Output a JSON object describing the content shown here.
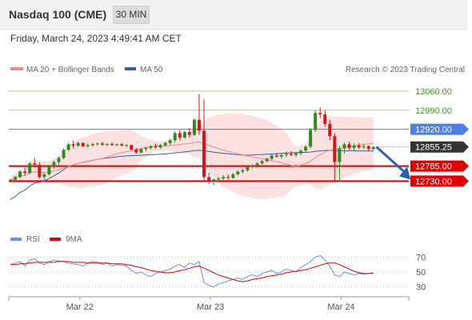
{
  "header": {
    "title": "Nasdaq 100 (CME)",
    "timeframe": "30 MIN",
    "datetime": "Friday, March 24, 2023 4:49:41 AM CET"
  },
  "copyright": "Research © 2023 Trading Central",
  "colors": {
    "green_level": "#a6d96a",
    "green_label": "#3a9a1a",
    "blue_level": "#4f7fe0",
    "red_level": "#e00000",
    "ma20": "#f08a8a",
    "bollinger_fill": "#fde0e0",
    "ma50": "#3b5f9c",
    "candle_up": "#2e8b1e",
    "candle_down": "#cc1a1a",
    "rsi": "#6a8fe8",
    "rsi_ma": "#e00000",
    "arrow": "#2a5fa8"
  },
  "chart_data": [
    {
      "type": "candlestick",
      "legend": [
        {
          "name": "MA 20 + Bollinger Bands",
          "color": "#f08a8a"
        },
        {
          "name": "MA 50",
          "color": "#3b5f9c"
        }
      ],
      "ylim": [
        12655,
        13095
      ],
      "levels": [
        {
          "value": 13060.0,
          "label": "13060.00",
          "kind": "resistance2"
        },
        {
          "value": 12990.0,
          "label": "12990.00",
          "kind": "resistance1"
        },
        {
          "value": 12920.0,
          "label": "12920.00",
          "kind": "pivot"
        },
        {
          "value": 12855.25,
          "label": "12855.25",
          "kind": "last"
        },
        {
          "value": 12785.0,
          "label": "12785.00",
          "kind": "support1"
        },
        {
          "value": 12730.0,
          "label": "12730.00",
          "kind": "support2"
        }
      ],
      "x_ticks": [
        {
          "index": 15,
          "label": "Mar 22"
        },
        {
          "index": 42,
          "label": "Mar 23"
        },
        {
          "index": 69,
          "label": "Mar 24"
        }
      ],
      "candles": [
        [
          12730,
          12738,
          12725,
          12735
        ],
        [
          12735,
          12750,
          12730,
          12745
        ],
        [
          12745,
          12770,
          12740,
          12765
        ],
        [
          12765,
          12780,
          12750,
          12760
        ],
        [
          12760,
          12800,
          12755,
          12795
        ],
        [
          12795,
          12815,
          12780,
          12790
        ],
        [
          12790,
          12800,
          12740,
          12745
        ],
        [
          12745,
          12760,
          12735,
          12755
        ],
        [
          12755,
          12790,
          12750,
          12785
        ],
        [
          12785,
          12805,
          12775,
          12800
        ],
        [
          12800,
          12820,
          12790,
          12815
        ],
        [
          12815,
          12850,
          12810,
          12845
        ],
        [
          12845,
          12870,
          12840,
          12865
        ],
        [
          12865,
          12880,
          12850,
          12860
        ],
        [
          12860,
          12875,
          12855,
          12870
        ],
        [
          12870,
          12872,
          12855,
          12858
        ],
        [
          12858,
          12868,
          12852,
          12862
        ],
        [
          12862,
          12870,
          12856,
          12866
        ],
        [
          12866,
          12872,
          12860,
          12868
        ],
        [
          12868,
          12874,
          12860,
          12864
        ],
        [
          12864,
          12870,
          12858,
          12866
        ],
        [
          12866,
          12872,
          12860,
          12863
        ],
        [
          12863,
          12868,
          12858,
          12865
        ],
        [
          12865,
          12870,
          12858,
          12860
        ],
        [
          12860,
          12866,
          12854,
          12862
        ],
        [
          12862,
          12864,
          12842,
          12846
        ],
        [
          12846,
          12852,
          12830,
          12835
        ],
        [
          12835,
          12850,
          12832,
          12848
        ],
        [
          12848,
          12856,
          12840,
          12852
        ],
        [
          12852,
          12862,
          12846,
          12858
        ],
        [
          12858,
          12868,
          12850,
          12854
        ],
        [
          12854,
          12866,
          12848,
          12862
        ],
        [
          12862,
          12874,
          12856,
          12870
        ],
        [
          12870,
          12886,
          12862,
          12880
        ],
        [
          12880,
          12912,
          12872,
          12906
        ],
        [
          12906,
          12918,
          12880,
          12890
        ],
        [
          12890,
          12915,
          12885,
          12910
        ],
        [
          12910,
          12925,
          12890,
          12900
        ],
        [
          12900,
          12960,
          12895,
          12955
        ],
        [
          12955,
          13050,
          12900,
          12915
        ],
        [
          12915,
          13030,
          12730,
          12745
        ],
        [
          12745,
          12760,
          12720,
          12728
        ],
        [
          12728,
          12740,
          12715,
          12736
        ],
        [
          12736,
          12745,
          12725,
          12740
        ],
        [
          12740,
          12752,
          12732,
          12745
        ],
        [
          12745,
          12755,
          12735,
          12742
        ],
        [
          12742,
          12760,
          12738,
          12755
        ],
        [
          12755,
          12770,
          12750,
          12765
        ],
        [
          12765,
          12775,
          12758,
          12770
        ],
        [
          12770,
          12786,
          12765,
          12782
        ],
        [
          12782,
          12792,
          12776,
          12788
        ],
        [
          12788,
          12800,
          12780,
          12795
        ],
        [
          12795,
          12808,
          12790,
          12803
        ],
        [
          12803,
          12816,
          12798,
          12812
        ],
        [
          12812,
          12828,
          12806,
          12824
        ],
        [
          12824,
          12834,
          12816,
          12820
        ],
        [
          12820,
          12830,
          12812,
          12826
        ],
        [
          12826,
          12838,
          12818,
          12830
        ],
        [
          12830,
          12840,
          12822,
          12826
        ],
        [
          12826,
          12836,
          12818,
          12832
        ],
        [
          12832,
          12846,
          12826,
          12842
        ],
        [
          12842,
          12860,
          12836,
          12856
        ],
        [
          12856,
          12925,
          12850,
          12918
        ],
        [
          12918,
          12990,
          12910,
          12980
        ],
        [
          12980,
          13000,
          12960,
          12975
        ],
        [
          12975,
          12990,
          12930,
          12940
        ],
        [
          12940,
          12955,
          12880,
          12895
        ],
        [
          12895,
          12905,
          12728,
          12800
        ],
        [
          12800,
          12860,
          12728,
          12850
        ],
        [
          12850,
          12872,
          12830,
          12865
        ],
        [
          12865,
          12875,
          12845,
          12852
        ],
        [
          12852,
          12868,
          12842,
          12860
        ],
        [
          12860,
          12870,
          12848,
          12854
        ],
        [
          12854,
          12866,
          12846,
          12858
        ],
        [
          12858,
          12862,
          12840,
          12848
        ],
        [
          12848,
          12858,
          12842,
          12855
        ]
      ]
    },
    {
      "type": "line",
      "legend": [
        {
          "name": "RSI",
          "color": "#6a8fe8"
        },
        {
          "name": "9MA",
          "color": "#e00000"
        }
      ],
      "ylim": [
        20,
        80
      ],
      "y_ticks": [
        70,
        50,
        30
      ],
      "series": [
        {
          "name": "RSI",
          "values": [
            60,
            62,
            64,
            58,
            66,
            68,
            62,
            60,
            64,
            66,
            65,
            64,
            62,
            61,
            60,
            58,
            62,
            64,
            63,
            60,
            62,
            58,
            60,
            59,
            58,
            52,
            48,
            50,
            46,
            44,
            48,
            50,
            52,
            54,
            58,
            60,
            56,
            62,
            60,
            64,
            36,
            32,
            30,
            34,
            36,
            38,
            40,
            42,
            40,
            44,
            46,
            44,
            48,
            50,
            52,
            48,
            50,
            54,
            52,
            50,
            56,
            60,
            64,
            70,
            72,
            66,
            58,
            46,
            44,
            50,
            48,
            46,
            48,
            47,
            48,
            49
          ]
        },
        {
          "name": "9MA",
          "values": [
            60,
            60,
            61,
            61,
            62,
            63,
            63,
            63,
            63,
            63,
            64,
            64,
            64,
            63,
            63,
            63,
            62,
            62,
            62,
            62,
            62,
            61,
            61,
            61,
            60,
            59,
            57,
            56,
            54,
            52,
            51,
            50,
            49,
            49,
            50,
            52,
            53,
            55,
            57,
            58,
            55,
            52,
            49,
            46,
            44,
            42,
            40,
            38,
            37,
            38,
            40,
            41,
            42,
            44,
            45,
            46,
            47,
            49,
            50,
            51,
            52,
            53,
            55,
            57,
            59,
            61,
            62,
            62,
            60,
            57,
            54,
            51,
            49,
            48,
            48,
            48
          ]
        }
      ]
    }
  ]
}
